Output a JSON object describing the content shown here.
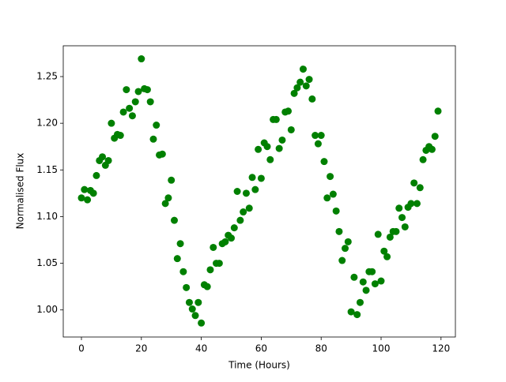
{
  "chart_data": {
    "type": "scatter",
    "x_label": "Time (Hours)",
    "y_label": "Normalised Flux",
    "x": [
      0,
      1,
      2,
      3,
      4,
      5,
      6,
      7,
      8,
      9,
      10,
      11,
      12,
      13,
      14,
      15,
      16,
      17,
      18,
      19,
      20,
      21,
      22,
      23,
      24,
      25,
      26,
      27,
      28,
      29,
      30,
      31,
      32,
      33,
      34,
      35,
      36,
      37,
      38,
      39,
      40,
      41,
      42,
      43,
      44,
      45,
      46,
      47,
      48,
      49,
      50,
      51,
      52,
      53,
      54,
      55,
      56,
      57,
      58,
      59,
      60,
      61,
      62,
      63,
      64,
      65,
      66,
      67,
      68,
      69,
      70,
      71,
      72,
      73,
      74,
      75,
      76,
      77,
      78,
      79,
      80,
      81,
      82,
      83,
      84,
      85,
      86,
      87,
      88,
      89,
      90,
      91,
      92,
      93,
      94,
      95,
      96,
      97,
      98,
      99,
      100,
      101,
      102,
      103,
      104,
      105,
      106,
      107,
      108,
      109,
      110,
      111,
      112,
      113,
      114,
      115,
      116,
      117,
      118,
      119
    ],
    "series": [
      {
        "color": "#008000",
        "values": [
          1.12,
          1.129,
          1.118,
          1.128,
          1.125,
          1.144,
          1.16,
          1.164,
          1.155,
          1.16,
          1.2,
          1.184,
          1.188,
          1.187,
          1.212,
          1.236,
          1.216,
          1.208,
          1.223,
          1.234,
          1.269,
          1.237,
          1.236,
          1.223,
          1.183,
          1.198,
          1.166,
          1.167,
          1.114,
          1.12,
          1.139,
          1.096,
          1.055,
          1.071,
          1.041,
          1.024,
          1.008,
          1.001,
          0.994,
          1.008,
          0.986,
          1.027,
          1.025,
          1.043,
          1.067,
          1.05,
          1.05,
          1.071,
          1.073,
          1.08,
          1.077,
          1.088,
          1.127,
          1.096,
          1.105,
          1.125,
          1.109,
          1.142,
          1.129,
          1.172,
          1.141,
          1.179,
          1.175,
          1.161,
          1.204,
          1.204,
          1.173,
          1.182,
          1.212,
          1.213,
          1.193,
          1.232,
          1.238,
          1.244,
          1.258,
          1.24,
          1.247,
          1.226,
          1.187,
          1.178,
          1.187,
          1.159,
          1.12,
          1.143,
          1.124,
          1.106,
          1.084,
          1.053,
          1.066,
          1.073,
          0.998,
          1.035,
          0.995,
          1.008,
          1.03,
          1.021,
          1.041,
          1.041,
          1.028,
          1.081,
          1.031,
          1.063,
          1.057,
          1.078,
          1.084,
          1.084,
          1.109,
          1.099,
          1.089,
          1.11,
          1.114,
          1.136,
          1.114,
          1.131,
          1.161,
          1.171,
          1.175,
          1.172,
          1.186,
          1.213
        ]
      }
    ],
    "xlim": [
      -6.07,
      124.8
    ],
    "ylim": [
      0.971,
      1.283
    ],
    "xticks": [
      0,
      20,
      40,
      60,
      80,
      100,
      120
    ],
    "yticks": [
      {
        "value": 1.0,
        "label": "1.00"
      },
      1.05,
      {
        "value": 1.1,
        "label": "1.10"
      },
      1.15,
      {
        "value": 1.2,
        "label": "1.20"
      },
      1.25
    ],
    "grid": false
  }
}
